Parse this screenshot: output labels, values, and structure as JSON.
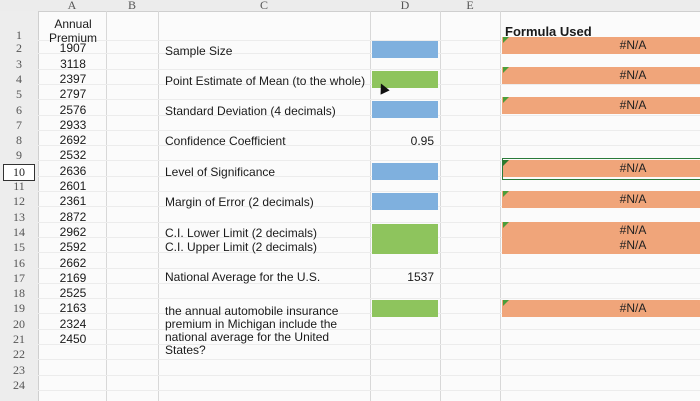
{
  "columns": [
    "A",
    "B",
    "C",
    "D",
    "E"
  ],
  "rows": [
    "1",
    "2",
    "3",
    "4",
    "5",
    "6",
    "7",
    "8",
    "9",
    "10",
    "11",
    "12",
    "13",
    "14",
    "15",
    "16",
    "17",
    "18",
    "19",
    "20",
    "21",
    "22",
    "23",
    "24"
  ],
  "selected_row": "10",
  "col_a": {
    "header": "Annual Premium",
    "values": [
      "1907",
      "3118",
      "2397",
      "2797",
      "2576",
      "2933",
      "2692",
      "2532",
      "2636",
      "2601",
      "2361",
      "2872",
      "2962",
      "2592",
      "2662",
      "2169",
      "2525",
      "2163",
      "2324",
      "2450"
    ]
  },
  "labels": {
    "sample_size": "Sample Size",
    "point_estimate": "Point Estimate of Mean (to the whole)",
    "std_dev": "Standard Deviation (4 decimals)",
    "confidence_coef": "Confidence Coefficient",
    "significance": "Level of Significance",
    "margin_error": "Margin of Error (2 decimals)",
    "ci_lower": "C.I. Lower Limit (2 decimals)",
    "ci_upper": "C.I. Upper Limit (2 decimals)",
    "national_avg": "National Average for the U.S.",
    "question": "the annual automobile insurance premium in Michigan include the national average for the United States?"
  },
  "values": {
    "confidence_coef": "0.95",
    "national_avg": "1537"
  },
  "formula_header": "Formula Used",
  "na_text": "#N/A",
  "colors": {
    "blue": "#7fb0de",
    "green": "#8ec45d",
    "orange": "#f0a57a"
  }
}
